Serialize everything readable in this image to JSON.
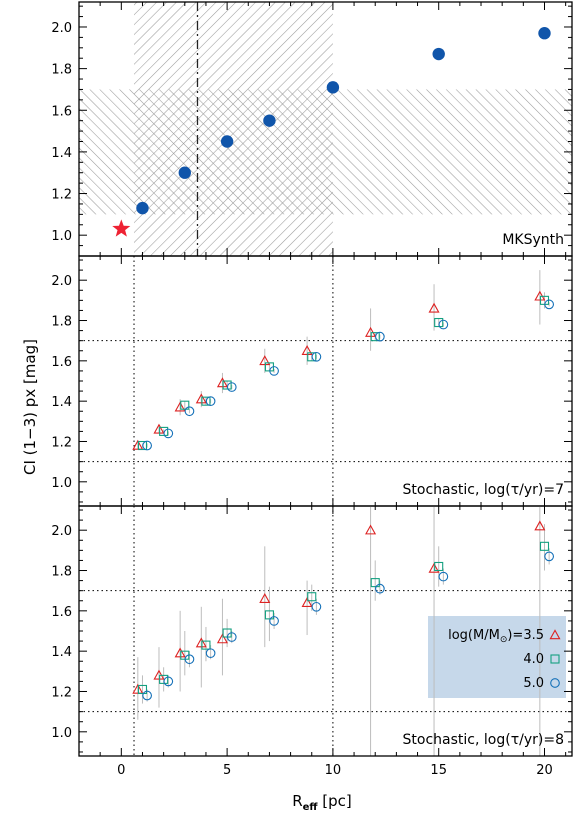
{
  "colors": {
    "mksynth_point": "#1055aa",
    "star": "#ee2233",
    "red": "#dd2222",
    "green": "#14a080",
    "blue": "#1470b8",
    "hatch": "#999999",
    "errorbar": "#bdbdbd",
    "legend_bg": "#c6d8ea"
  },
  "axes": {
    "xlabel_main": "R",
    "xlabel_sub": "eff",
    "xlabel_unit": " [pc]",
    "ylabel": "CI (1−3) px [mag]"
  },
  "legend": {
    "entries": [
      {
        "label": "log(M/M",
        "sun": "⊙",
        "tail": ")=3.5",
        "marker": "triangle",
        "color_key": "red"
      },
      {
        "label": "4.0",
        "marker": "square",
        "color_key": "green"
      },
      {
        "label": "5.0",
        "marker": "circle",
        "color_key": "blue"
      }
    ]
  },
  "chart_data": [
    {
      "type": "scatter",
      "panel_label": "MKSynth",
      "xlim": [
        -2,
        21.3
      ],
      "ylim": [
        0.9,
        2.12
      ],
      "xticks": [
        0,
        5,
        10,
        15,
        20
      ],
      "yticks": [
        1.0,
        1.2,
        1.4,
        1.6,
        1.8,
        2.0
      ],
      "star": {
        "x": 0,
        "y": 1.03
      },
      "reference_line_x": 3.6,
      "hatched_regions": [
        {
          "x": [
            0.6,
            10
          ],
          "y": [
            0.9,
            2.12
          ]
        },
        {
          "x": [
            -2,
            21.3
          ],
          "y": [
            1.1,
            1.7
          ]
        }
      ],
      "series": [
        {
          "x": [
            1,
            3,
            5,
            7,
            10,
            15,
            20
          ],
          "y": [
            1.13,
            1.3,
            1.45,
            1.55,
            1.71,
            1.87,
            1.97
          ]
        }
      ]
    },
    {
      "type": "scatter",
      "panel_label": "Stochastic, log(τ/yr)=7",
      "xlim": [
        -2,
        21.3
      ],
      "ylim": [
        0.88,
        2.12
      ],
      "xticks": [
        0,
        5,
        10,
        15,
        20
      ],
      "yticks": [
        1.0,
        1.2,
        1.4,
        1.6,
        1.8,
        2.0
      ],
      "reference_lines": {
        "x": [
          0.6,
          10
        ],
        "y": [
          1.1,
          1.7
        ]
      },
      "series": [
        {
          "name": "log(M/M⊙)=3.5",
          "marker": "triangle",
          "color_key": "red",
          "x": [
            1,
            2,
            3,
            4,
            5,
            7,
            9,
            12,
            15,
            20
          ],
          "y": [
            1.18,
            1.26,
            1.37,
            1.41,
            1.49,
            1.6,
            1.65,
            1.74,
            1.86,
            1.92
          ],
          "err": [
            [
              1.16,
              1.2
            ],
            [
              1.24,
              1.28
            ],
            [
              1.33,
              1.41
            ],
            [
              1.37,
              1.45
            ],
            [
              1.44,
              1.54
            ],
            [
              1.54,
              1.66
            ],
            [
              1.58,
              1.72
            ],
            [
              1.65,
              1.86
            ],
            [
              1.75,
              1.98
            ],
            [
              1.78,
              2.05
            ]
          ]
        },
        {
          "name": "4.0",
          "marker": "square",
          "color_key": "green",
          "x": [
            1,
            2,
            3,
            4,
            5,
            7,
            9,
            12,
            15,
            20
          ],
          "y": [
            1.18,
            1.25,
            1.38,
            1.4,
            1.48,
            1.57,
            1.62,
            1.72,
            1.79,
            1.9
          ],
          "err": [
            [
              1.17,
              1.19
            ],
            [
              1.24,
              1.26
            ],
            [
              1.36,
              1.4
            ],
            [
              1.38,
              1.42
            ],
            [
              1.46,
              1.5
            ],
            [
              1.55,
              1.59
            ],
            [
              1.6,
              1.64
            ],
            [
              1.7,
              1.74
            ],
            [
              1.77,
              1.81
            ],
            [
              1.86,
              1.94
            ]
          ]
        },
        {
          "name": "5.0",
          "marker": "circle",
          "color_key": "blue",
          "x": [
            1,
            2,
            3,
            4,
            5,
            7,
            9,
            12,
            15,
            20
          ],
          "y": [
            1.18,
            1.24,
            1.35,
            1.4,
            1.47,
            1.55,
            1.62,
            1.72,
            1.78,
            1.88
          ],
          "err": [
            [
              1.17,
              1.19
            ],
            [
              1.23,
              1.25
            ],
            [
              1.34,
              1.36
            ],
            [
              1.39,
              1.41
            ],
            [
              1.46,
              1.48
            ],
            [
              1.54,
              1.56
            ],
            [
              1.61,
              1.63
            ],
            [
              1.71,
              1.73
            ],
            [
              1.77,
              1.79
            ],
            [
              1.87,
              1.89
            ]
          ]
        }
      ]
    },
    {
      "type": "scatter",
      "panel_label": "Stochastic, log(τ/yr)=8",
      "xlim": [
        -2,
        21.3
      ],
      "ylim": [
        0.88,
        2.12
      ],
      "xticks": [
        0,
        5,
        10,
        15,
        20
      ],
      "yticks": [
        1.0,
        1.2,
        1.4,
        1.6,
        1.8,
        2.0
      ],
      "reference_lines": {
        "x": [
          0.6,
          10
        ],
        "y": [
          1.1,
          1.7
        ]
      },
      "series": [
        {
          "name": "log(M/M⊙)=3.5",
          "marker": "triangle",
          "color_key": "red",
          "x": [
            1,
            2,
            3,
            4,
            5,
            7,
            9,
            12,
            15,
            20
          ],
          "y": [
            1.21,
            1.28,
            1.39,
            1.44,
            1.46,
            1.66,
            1.64,
            2.0,
            1.81,
            2.02
          ],
          "err": [
            [
              1.06,
              1.37
            ],
            [
              1.12,
              1.42
            ],
            [
              1.2,
              1.6
            ],
            [
              1.22,
              1.62
            ],
            [
              1.28,
              1.66
            ],
            [
              1.42,
              1.92
            ],
            [
              1.48,
              1.75
            ],
            [
              0.88,
              2.12
            ],
            [
              0.88,
              2.12
            ],
            [
              0.88,
              2.12
            ]
          ]
        },
        {
          "name": "4.0",
          "marker": "square",
          "color_key": "green",
          "x": [
            1,
            2,
            3,
            4,
            5,
            7,
            9,
            12,
            15,
            20
          ],
          "y": [
            1.21,
            1.26,
            1.38,
            1.43,
            1.49,
            1.58,
            1.67,
            1.74,
            1.82,
            1.92
          ],
          "err": [
            [
              1.14,
              1.28
            ],
            [
              1.2,
              1.32
            ],
            [
              1.28,
              1.5
            ],
            [
              1.35,
              1.52
            ],
            [
              1.42,
              1.56
            ],
            [
              1.45,
              1.72
            ],
            [
              1.6,
              1.73
            ],
            [
              1.65,
              1.85
            ],
            [
              1.72,
              1.92
            ],
            [
              1.8,
              2.03
            ]
          ]
        },
        {
          "name": "5.0",
          "marker": "circle",
          "color_key": "blue",
          "x": [
            1,
            2,
            3,
            4,
            5,
            7,
            9,
            12,
            15,
            20
          ],
          "y": [
            1.18,
            1.25,
            1.36,
            1.39,
            1.47,
            1.55,
            1.62,
            1.71,
            1.77,
            1.87
          ],
          "err": [
            [
              1.15,
              1.21
            ],
            [
              1.22,
              1.28
            ],
            [
              1.32,
              1.4
            ],
            [
              1.36,
              1.43
            ],
            [
              1.44,
              1.5
            ],
            [
              1.51,
              1.59
            ],
            [
              1.58,
              1.66
            ],
            [
              1.68,
              1.75
            ],
            [
              1.73,
              1.81
            ],
            [
              1.83,
              1.91
            ]
          ]
        }
      ]
    }
  ]
}
